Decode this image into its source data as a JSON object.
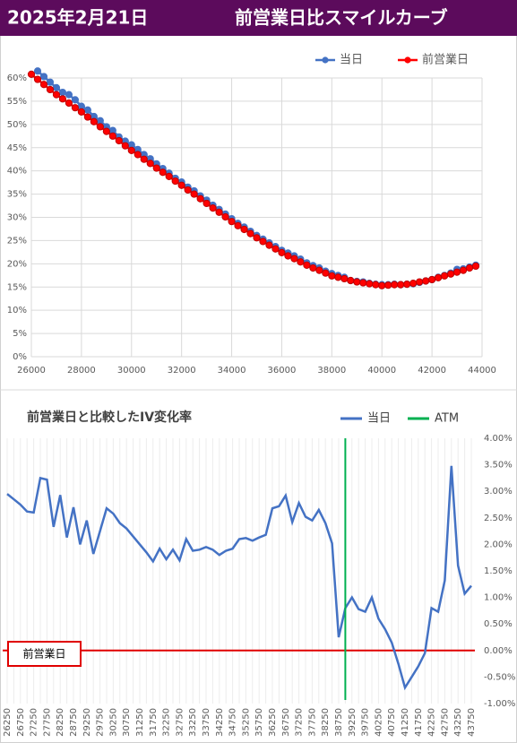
{
  "header": {
    "date": "2025年2月21日",
    "title": "前営業日比スマイルカーブ"
  },
  "chart_data": [
    {
      "type": "line",
      "x": [
        26000,
        26250,
        26500,
        26750,
        27000,
        27250,
        27500,
        27750,
        28000,
        28250,
        28500,
        28750,
        29000,
        29250,
        29500,
        29750,
        30000,
        30250,
        30500,
        30750,
        31000,
        31250,
        31500,
        31750,
        32000,
        32250,
        32500,
        32750,
        33000,
        33250,
        33500,
        33750,
        34000,
        34250,
        34500,
        34750,
        35000,
        35250,
        35500,
        35750,
        36000,
        36250,
        36500,
        36750,
        37000,
        37250,
        37500,
        37750,
        38000,
        38250,
        38500,
        38750,
        39000,
        39250,
        39500,
        39750,
        40000,
        40250,
        40500,
        40750,
        41000,
        41250,
        41500,
        41750,
        42000,
        42250,
        42500,
        42750,
        43000,
        43250,
        43500,
        43750
      ],
      "series": [
        {
          "name": "当日",
          "color": "#4472c4",
          "values": [
            null,
            61.5,
            60.3,
            59.1,
            57.9,
            56.9,
            56.4,
            55.3,
            53.9,
            53.1,
            51.7,
            50.8,
            49.5,
            48.7,
            47.3,
            46.4,
            45.6,
            44.6,
            43.5,
            42.6,
            41.5,
            40.5,
            39.5,
            38.4,
            37.6,
            36.5,
            35.7,
            34.6,
            33.7,
            32.6,
            31.7,
            30.7,
            29.7,
            28.7,
            27.9,
            27.0,
            26.1,
            25.3,
            24.5,
            23.7,
            22.9,
            22.3,
            21.7,
            21.0,
            20.2,
            19.6,
            19.1,
            18.4,
            17.9,
            17.5,
            17.1,
            16.4,
            16.2,
            16.1,
            15.8,
            15.6,
            15.5,
            15.5,
            15.6,
            15.5,
            15.6,
            15.7,
            16.0,
            16.3,
            16.6,
            17.1,
            17.5,
            18.0,
            18.8,
            18.9,
            19.3,
            19.7
          ]
        },
        {
          "name": "前営業日",
          "color": "#ff0000",
          "values": [
            60.8,
            59.7,
            58.6,
            57.5,
            56.4,
            55.5,
            54.6,
            53.6,
            52.7,
            51.6,
            50.6,
            49.5,
            48.5,
            47.5,
            46.5,
            45.4,
            44.4,
            43.5,
            42.5,
            41.6,
            40.6,
            39.7,
            38.8,
            37.8,
            36.9,
            35.9,
            35.0,
            34.0,
            33.0,
            32.0,
            31.1,
            30.1,
            29.1,
            28.2,
            27.4,
            26.5,
            25.6,
            24.8,
            24.0,
            23.2,
            22.4,
            21.7,
            21.1,
            20.4,
            19.7,
            19.1,
            18.6,
            18.0,
            17.4,
            17.1,
            16.8,
            16.4,
            16.1,
            15.9,
            15.7,
            15.5,
            15.3,
            15.4,
            15.5,
            15.5,
            15.6,
            15.8,
            16.1,
            16.3,
            16.6,
            17.0,
            17.4,
            17.8,
            18.2,
            18.6,
            19.1,
            19.5
          ]
        }
      ],
      "xlim": [
        26000,
        44000
      ],
      "xticks": [
        26000,
        28000,
        30000,
        32000,
        34000,
        36000,
        38000,
        40000,
        42000,
        44000
      ],
      "ylim": [
        0,
        60
      ],
      "yticks": [
        {
          "value": 0,
          "label": "0%"
        },
        {
          "value": 5,
          "label": "5%"
        },
        {
          "value": 10,
          "label": "10%"
        },
        {
          "value": 15,
          "label": "15%"
        },
        {
          "value": 20,
          "label": "20%"
        },
        {
          "value": 25,
          "label": "25%"
        },
        {
          "value": 30,
          "label": "30%"
        },
        {
          "value": 35,
          "label": "35%"
        },
        {
          "value": 40,
          "label": "40%"
        },
        {
          "value": 45,
          "label": "45%"
        },
        {
          "value": 50,
          "label": "50%"
        },
        {
          "value": 55,
          "label": "55%"
        },
        {
          "value": 60,
          "label": "60%"
        }
      ],
      "grid": true,
      "legend": "top-right"
    },
    {
      "type": "line",
      "title": "前営業日と比較したIV変化率",
      "categories": [
        "26250",
        null,
        "26750",
        null,
        "27250",
        null,
        "27750",
        null,
        "28250",
        null,
        "28750",
        null,
        "29250",
        null,
        "29750",
        null,
        "30250",
        null,
        "30750",
        null,
        "31250",
        null,
        "31750",
        null,
        "32250",
        null,
        "32750",
        null,
        "33250",
        null,
        "33750",
        null,
        "34250",
        null,
        "34750",
        null,
        "35250",
        null,
        "35750",
        null,
        "36250",
        null,
        "36750",
        null,
        "37250",
        null,
        "37750",
        null,
        "38250",
        null,
        "38750",
        null,
        "39250",
        null,
        "39750",
        null,
        "40250",
        null,
        "40750",
        null,
        "41250",
        null,
        "41750",
        null,
        "42250",
        null,
        "42750",
        null,
        "43250",
        null,
        "43750"
      ],
      "series": [
        {
          "name": "当日",
          "color": "#4472c4",
          "values": [
            2.95,
            2.85,
            2.75,
            2.62,
            2.6,
            3.25,
            3.22,
            2.33,
            2.93,
            2.13,
            2.7,
            2.0,
            2.45,
            1.82,
            2.25,
            2.68,
            2.58,
            2.4,
            2.3,
            2.15,
            2.0,
            1.85,
            1.68,
            1.92,
            1.72,
            1.9,
            1.7,
            2.1,
            1.88,
            1.9,
            1.95,
            1.9,
            1.8,
            1.88,
            1.92,
            2.1,
            2.12,
            2.07,
            2.13,
            2.18,
            2.68,
            2.72,
            2.92,
            2.42,
            2.78,
            2.52,
            2.45,
            2.65,
            2.4,
            2.02,
            0.25,
            0.8,
            1.0,
            0.78,
            0.73,
            1.0,
            0.6,
            0.4,
            0.15,
            -0.25,
            -0.7,
            -0.5,
            -0.3,
            -0.05,
            0.8,
            0.73,
            1.32,
            3.48,
            1.6,
            1.07,
            1.22
          ]
        },
        {
          "name": "ATM",
          "color": "#00b050",
          "x": 39000
        }
      ],
      "reference_line": {
        "label": "前営業日",
        "value": 0,
        "color": "#e00000"
      },
      "ylim": [
        -1,
        4
      ],
      "yticks": [
        {
          "value": 4,
          "label": "4.00%"
        },
        {
          "value": 3.5,
          "label": "3.50%"
        },
        {
          "value": 3,
          "label": "3.00%"
        },
        {
          "value": 2.5,
          "label": "2.50%"
        },
        {
          "value": 2,
          "label": "2.00%"
        },
        {
          "value": 1.5,
          "label": "1.50%"
        },
        {
          "value": 1,
          "label": "1.00%"
        },
        {
          "value": 0.5,
          "label": "0.50%"
        },
        {
          "value": 0,
          "label": "0.00%"
        },
        {
          "value": -0.5,
          "label": "-0.50%"
        },
        {
          "value": -1,
          "label": "-1.00%"
        }
      ],
      "grid": true,
      "legend": "top-right"
    }
  ]
}
